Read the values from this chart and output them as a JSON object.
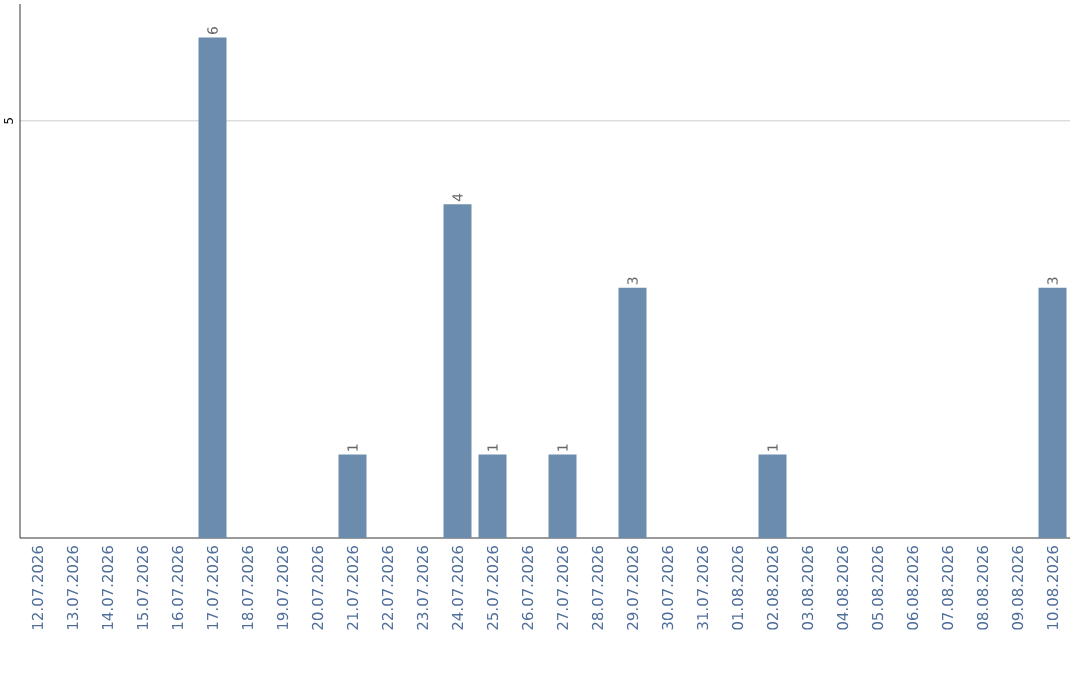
{
  "chart_data": {
    "type": "bar",
    "categories": [
      "12.07.2026",
      "13.07.2026",
      "14.07.2026",
      "15.07.2026",
      "16.07.2026",
      "17.07.2026",
      "18.07.2026",
      "19.07.2026",
      "20.07.2026",
      "21.07.2026",
      "22.07.2026",
      "23.07.2026",
      "24.07.2026",
      "25.07.2026",
      "26.07.2026",
      "27.07.2026",
      "28.07.2026",
      "29.07.2026",
      "30.07.2026",
      "31.07.2026",
      "01.08.2026",
      "02.08.2026",
      "03.08.2026",
      "04.08.2026",
      "05.08.2026",
      "06.08.2026",
      "07.08.2026",
      "08.08.2026",
      "09.08.2026",
      "10.08.2026"
    ],
    "values": [
      0,
      0,
      0,
      0,
      0,
      6,
      0,
      0,
      0,
      1,
      0,
      0,
      4,
      1,
      0,
      1,
      0,
      3,
      0,
      0,
      0,
      1,
      0,
      0,
      0,
      0,
      0,
      0,
      0,
      3
    ],
    "value_labels": [
      null,
      null,
      null,
      null,
      null,
      "6",
      null,
      null,
      null,
      "1",
      null,
      null,
      "4",
      "1",
      null,
      "1",
      null,
      "3",
      null,
      null,
      null,
      "1",
      null,
      null,
      null,
      null,
      null,
      null,
      null,
      "3"
    ],
    "color": "#6b8cad",
    "ylim": [
      0,
      6.4
    ],
    "yticks": [
      5
    ],
    "grid": "y"
  }
}
